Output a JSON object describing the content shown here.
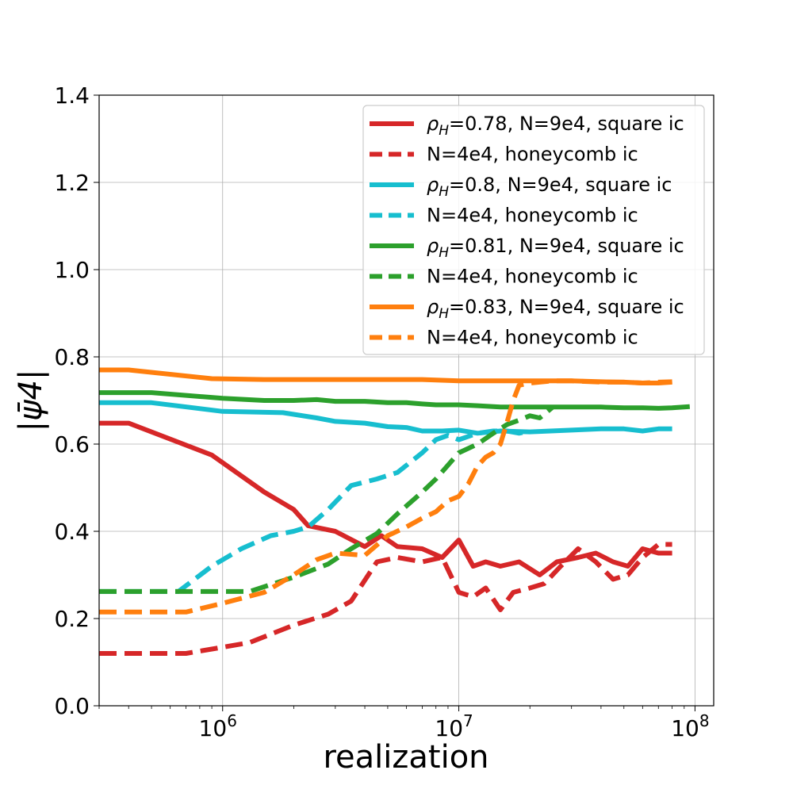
{
  "chart_data": {
    "type": "line",
    "xlabel": "realization",
    "ylabel": "|ψ̄4|",
    "xscale": "log",
    "xlim": [
      300000,
      120000000
    ],
    "ylim": [
      0,
      1.4
    ],
    "grid": true,
    "legend_placement": "top-right",
    "x_ticks": [
      {
        "value": 1000000,
        "label": "10",
        "exp": "6"
      },
      {
        "value": 10000000,
        "label": "10",
        "exp": "7"
      },
      {
        "value": 100000000,
        "label": "10",
        "exp": "8"
      }
    ],
    "y_ticks": [
      {
        "value": 0.0,
        "label": "0.0"
      },
      {
        "value": 0.2,
        "label": "0.2"
      },
      {
        "value": 0.4,
        "label": "0.4"
      },
      {
        "value": 0.6,
        "label": "0.6"
      },
      {
        "value": 0.8,
        "label": "0.8"
      },
      {
        "value": 1.0,
        "label": "1.0"
      },
      {
        "value": 1.2,
        "label": "1.2"
      },
      {
        "value": 1.4,
        "label": "1.4"
      }
    ],
    "series": [
      {
        "name": "ρH=0.78, N=9e4, square ic",
        "rho": "0.78",
        "rest": "=0.78, N=9e4, square ic",
        "color": "#d62728",
        "dashed": false,
        "x": [
          300000,
          400000,
          900000,
          1500000,
          2000000,
          2300000,
          3000000,
          4000000,
          4700000,
          5500000,
          7000000,
          8500000,
          10000000,
          11500000,
          13000000,
          15000000,
          18000000,
          22000000,
          26000000,
          32000000,
          38000000,
          45000000,
          52000000,
          60000000,
          70000000,
          80000000
        ],
        "y": [
          0.648,
          0.648,
          0.575,
          0.49,
          0.45,
          0.413,
          0.4,
          0.365,
          0.39,
          0.365,
          0.36,
          0.34,
          0.38,
          0.32,
          0.33,
          0.32,
          0.33,
          0.3,
          0.33,
          0.34,
          0.35,
          0.33,
          0.32,
          0.36,
          0.35,
          0.35
        ]
      },
      {
        "name": "N=4e4, honeycomb ic",
        "rho": "",
        "rest": "N=4e4, honeycomb ic",
        "color": "#d62728",
        "dashed": true,
        "x": [
          300000,
          700000,
          900000,
          1300000,
          2000000,
          2800000,
          3500000,
          4500000,
          5500000,
          7000000,
          8500000,
          10000000,
          11500000,
          13000000,
          15000000,
          17000000,
          20000000,
          23000000,
          27000000,
          32000000,
          38000000,
          45000000,
          52000000,
          60000000,
          70000000,
          80000000
        ],
        "y": [
          0.12,
          0.12,
          0.13,
          0.145,
          0.185,
          0.21,
          0.24,
          0.33,
          0.34,
          0.33,
          0.34,
          0.26,
          0.25,
          0.27,
          0.22,
          0.26,
          0.27,
          0.28,
          0.32,
          0.36,
          0.33,
          0.29,
          0.3,
          0.34,
          0.37,
          0.37
        ]
      },
      {
        "name": "ρH=0.8, N=9e4, square ic",
        "rho": "0.8",
        "rest": "=0.8, N=9e4, square ic",
        "color": "#17becf",
        "dashed": false,
        "x": [
          300000,
          500000,
          1000000,
          1800000,
          2500000,
          3000000,
          4000000,
          5000000,
          6000000,
          7000000,
          8500000,
          10000000,
          12000000,
          15000000,
          20000000,
          30000000,
          40000000,
          50000000,
          60000000,
          70000000,
          80000000
        ],
        "y": [
          0.695,
          0.695,
          0.675,
          0.672,
          0.66,
          0.652,
          0.648,
          0.64,
          0.638,
          0.63,
          0.63,
          0.632,
          0.625,
          0.63,
          0.628,
          0.632,
          0.635,
          0.635,
          0.63,
          0.635,
          0.635
        ]
      },
      {
        "name": "N=4e4, honeycomb ic",
        "rho": "",
        "rest": "N=4e4, honeycomb ic",
        "color": "#17becf",
        "dashed": true,
        "x": [
          300000,
          650000,
          900000,
          1200000,
          1600000,
          2000000,
          2300000,
          2800000,
          3500000,
          4500000,
          5500000,
          7000000,
          8000000,
          9000000,
          10000000,
          12000000,
          14000000,
          16000000,
          18000000,
          20000000
        ],
        "y": [
          0.262,
          0.262,
          0.32,
          0.36,
          0.39,
          0.4,
          0.41,
          0.45,
          0.505,
          0.52,
          0.535,
          0.58,
          0.61,
          0.62,
          0.61,
          0.625,
          0.63,
          0.63,
          0.625,
          0.63
        ]
      },
      {
        "name": "ρH=0.81, N=9e4, square ic",
        "rho": "0.81",
        "rest": "=0.81, N=9e4, square ic",
        "color": "#2ca02c",
        "dashed": false,
        "x": [
          300000,
          500000,
          1000000,
          1500000,
          2000000,
          2500000,
          3000000,
          4000000,
          5000000,
          6000000,
          7000000,
          8000000,
          10000000,
          12000000,
          15000000,
          20000000,
          30000000,
          40000000,
          50000000,
          60000000,
          70000000,
          80000000,
          95000000
        ],
        "y": [
          0.718,
          0.718,
          0.705,
          0.7,
          0.7,
          0.702,
          0.698,
          0.698,
          0.695,
          0.695,
          0.692,
          0.69,
          0.69,
          0.688,
          0.685,
          0.685,
          0.685,
          0.685,
          0.683,
          0.683,
          0.682,
          0.683,
          0.686
        ]
      },
      {
        "name": "N=4e4, honeycomb ic",
        "rho": "",
        "rest": "N=4e4, honeycomb ic",
        "color": "#2ca02c",
        "dashed": true,
        "x": [
          300000,
          800000,
          1300000,
          2000000,
          2800000,
          3500000,
          4500000,
          5500000,
          7000000,
          8000000,
          10000000,
          12000000,
          14000000,
          16000000,
          18000000,
          20000000,
          22000000,
          25000000
        ],
        "y": [
          0.262,
          0.262,
          0.262,
          0.295,
          0.325,
          0.36,
          0.395,
          0.44,
          0.49,
          0.52,
          0.58,
          0.6,
          0.625,
          0.645,
          0.655,
          0.665,
          0.66,
          0.685
        ]
      },
      {
        "name": "ρH=0.83, N=9e4, square ic",
        "rho": "0.83",
        "rest": "=0.83, N=9e4, square ic",
        "color": "#ff7f0e",
        "dashed": false,
        "x": [
          300000,
          400000,
          900000,
          1500000,
          2000000,
          3000000,
          5000000,
          7000000,
          10000000,
          15000000,
          20000000,
          30000000,
          40000000,
          50000000,
          60000000,
          70000000,
          80000000
        ],
        "y": [
          0.77,
          0.77,
          0.75,
          0.748,
          0.748,
          0.748,
          0.748,
          0.748,
          0.745,
          0.745,
          0.745,
          0.745,
          0.743,
          0.742,
          0.74,
          0.74,
          0.742
        ]
      },
      {
        "name": "N=4e4, honeycomb ic",
        "rho": "",
        "rest": "N=4e4, honeycomb ic",
        "color": "#ff7f0e",
        "dashed": true,
        "x": [
          300000,
          700000,
          1000000,
          1500000,
          2000000,
          2500000,
          3000000,
          4000000,
          5000000,
          6000000,
          7000000,
          8000000,
          9000000,
          10000000,
          11000000,
          12000000,
          13000000,
          14000000,
          15000000,
          16000000,
          17000000,
          18000000,
          20000000,
          25000000,
          30000000,
          40000000,
          50000000,
          60000000,
          70000000,
          80000000
        ],
        "y": [
          0.215,
          0.215,
          0.235,
          0.26,
          0.3,
          0.335,
          0.35,
          0.345,
          0.39,
          0.41,
          0.43,
          0.445,
          0.47,
          0.48,
          0.51,
          0.55,
          0.57,
          0.58,
          0.6,
          0.65,
          0.7,
          0.735,
          0.74,
          0.745,
          0.745,
          0.742,
          0.742,
          0.74,
          0.742,
          0.743
        ]
      }
    ]
  }
}
